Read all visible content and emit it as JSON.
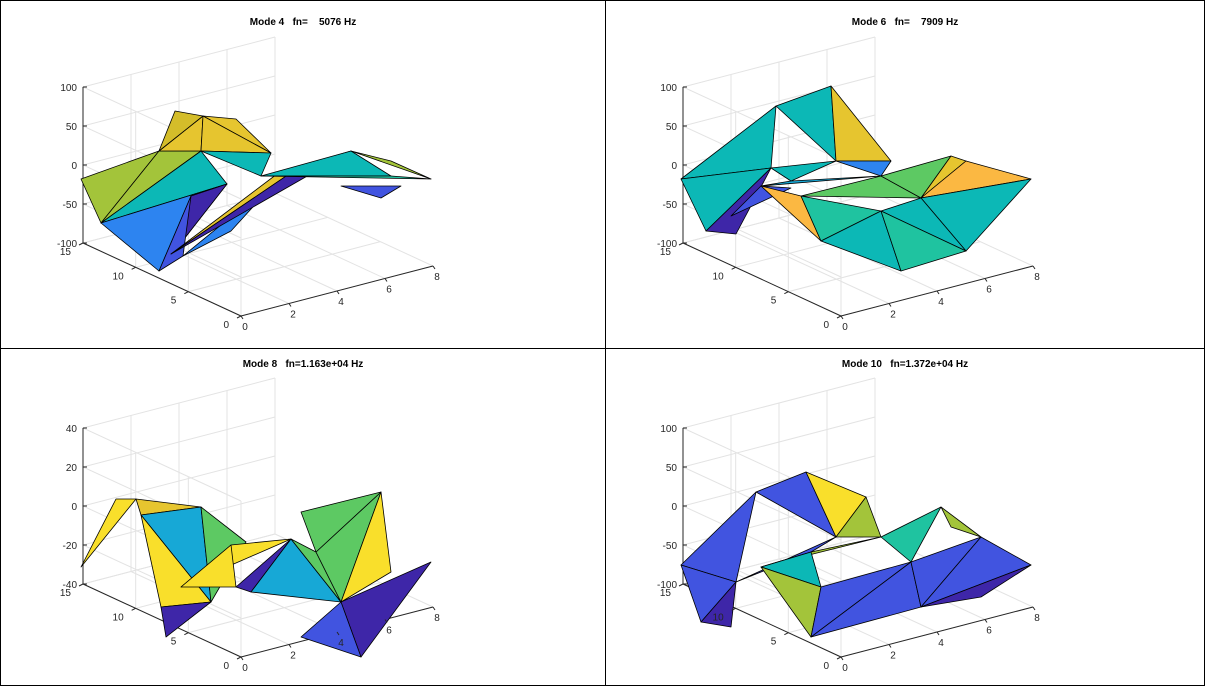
{
  "chart_data": [
    {
      "type": "surface",
      "title": "Mode 4   fn=    5076 Hz",
      "xticks": [
        "0",
        "2",
        "4",
        "6",
        "8"
      ],
      "yticks": [
        "0",
        "5",
        "10",
        "15"
      ],
      "zticks": [
        "-100",
        "-50",
        "0",
        "50",
        "100"
      ],
      "xlim": [
        0,
        8
      ],
      "ylim": [
        0,
        15
      ],
      "zlim": [
        -100,
        100
      ],
      "grid": true,
      "colormap": "parula"
    },
    {
      "type": "surface",
      "title": "Mode 6   fn=    7909 Hz",
      "xticks": [
        "0",
        "2",
        "4",
        "6",
        "8"
      ],
      "yticks": [
        "0",
        "5",
        "10",
        "15"
      ],
      "zticks": [
        "-100",
        "-50",
        "0",
        "50",
        "100"
      ],
      "xlim": [
        0,
        8
      ],
      "ylim": [
        0,
        15
      ],
      "zlim": [
        -100,
        100
      ],
      "grid": true,
      "colormap": "parula"
    },
    {
      "type": "surface",
      "title": "Mode 8   fn=1.163e+04 Hz",
      "xticks": [
        "0",
        "2",
        "4",
        "6",
        "8"
      ],
      "yticks": [
        "0",
        "5",
        "10",
        "15"
      ],
      "zticks": [
        "-40",
        "-20",
        "0",
        "20",
        "40"
      ],
      "xlim": [
        0,
        8
      ],
      "ylim": [
        0,
        15
      ],
      "zlim": [
        -40,
        40
      ],
      "grid": true,
      "colormap": "parula"
    },
    {
      "type": "surface",
      "title": "Mode 10   fn=1.372e+04 Hz",
      "xticks": [
        "0",
        "2",
        "4",
        "6",
        "8"
      ],
      "yticks": [
        "0",
        "5",
        "10",
        "15"
      ],
      "zticks": [
        "-100",
        "-50",
        "0",
        "50",
        "100"
      ],
      "xlim": [
        0,
        8
      ],
      "ylim": [
        0,
        15
      ],
      "zlim": [
        -100,
        100
      ],
      "grid": true,
      "colormap": "parula"
    }
  ]
}
